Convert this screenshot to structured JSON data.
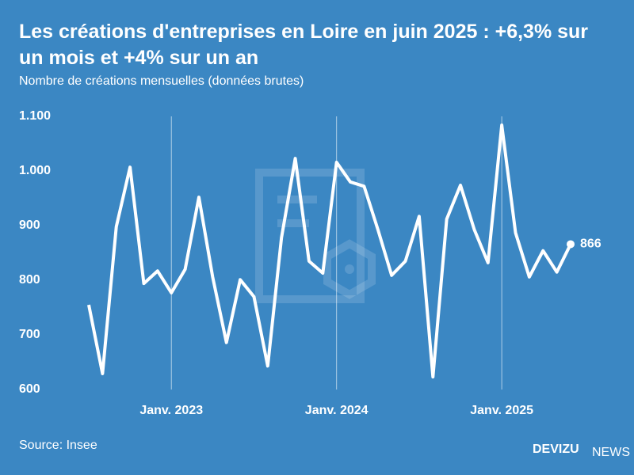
{
  "chart_data": {
    "type": "line",
    "title": "Les créations d'entreprises en Loire en juin 2025 : +6,3% sur un mois et +4% sur un an",
    "subtitle": "Nombre de créations mensuelles (données brutes)",
    "source": "Source: Insee",
    "brand": "DEVIZU",
    "brand_suffix": "NEWS",
    "categories": [
      null,
      null,
      null,
      null,
      null,
      null,
      "Janv. 2023",
      null,
      null,
      null,
      null,
      null,
      null,
      null,
      null,
      null,
      null,
      null,
      "Janv. 2024",
      null,
      null,
      null,
      null,
      null,
      null,
      null,
      null,
      null,
      null,
      null,
      "Janv. 2025",
      null,
      null,
      null,
      null,
      null
    ],
    "series": [
      {
        "name": "Créations",
        "color": "#ffffff",
        "values": [
          755,
          629,
          898,
          1007,
          794,
          817,
          777,
          820,
          952,
          806,
          686,
          801,
          770,
          643,
          878,
          1023,
          835,
          813,
          1016,
          980,
          972,
          893,
          809,
          835,
          917,
          623,
          912,
          974,
          893,
          832,
          1084,
          887,
          806,
          854,
          815,
          866
        ]
      }
    ],
    "ylim": [
      600,
      1100
    ],
    "yticks": [
      600,
      700,
      800,
      900,
      {
        "value": 1000,
        "label": "1.000"
      },
      {
        "value": 1100,
        "label": "1.100"
      }
    ],
    "grid": true
  }
}
